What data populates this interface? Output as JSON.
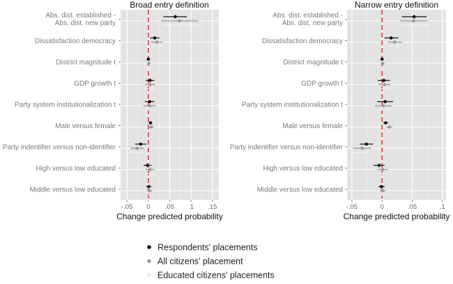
{
  "chart_data": [
    {
      "type": "scatter",
      "subtype": "coefficient-plot",
      "title": "Broad entry definition",
      "xlabel": "Change predicted probability",
      "xlim": [
        -0.065,
        0.165
      ],
      "xticks": [
        -0.05,
        0,
        0.05,
        0.1,
        0.15
      ],
      "xtick_labels": [
        "-.05",
        "0",
        ".05",
        ".1",
        ".15"
      ],
      "grid": true,
      "reference_line": 0,
      "categories": [
        "Abs. dist. established -\nAbs. dist. new party",
        "Dissatisfaction democracy",
        "District magnitude t",
        "GDP growth t",
        "Party system institutionalization t",
        "Male versus female",
        "Party indentifier versus non-identifier",
        "High versus low educated",
        "Middle versus low educated"
      ],
      "series": [
        {
          "name": "Respondents' placements",
          "color": "#111111",
          "estimates": [
            0.063,
            0.015,
            0.0,
            0.004,
            0.003,
            0.005,
            -0.018,
            -0.002,
            0.001
          ],
          "lower": [
            0.035,
            0.004,
            -0.002,
            -0.006,
            -0.008,
            0.001,
            -0.031,
            -0.011,
            -0.005
          ],
          "upper": [
            0.09,
            0.026,
            0.002,
            0.014,
            0.014,
            0.009,
            -0.005,
            0.007,
            0.007
          ]
        },
        {
          "name": "All citizens' placement",
          "color": "#9a9a9a",
          "estimates": [
            0.073,
            0.02,
            0.001,
            0.004,
            0.003,
            0.007,
            -0.026,
            0.004,
            0.003
          ],
          "lower": [
            0.03,
            0.006,
            -0.002,
            -0.008,
            -0.012,
            0.002,
            -0.042,
            -0.006,
            -0.003
          ],
          "upper": [
            0.117,
            0.034,
            0.004,
            0.016,
            0.018,
            0.012,
            -0.01,
            0.014,
            0.009
          ]
        },
        {
          "name": "Educated citizens' placements",
          "color": "#e8e8e8",
          "estimates": [
            0.078,
            0.022,
            0.001,
            0.005,
            0.004,
            0.008,
            -0.028,
            0.005,
            0.004
          ],
          "lower": [
            0.035,
            0.008,
            -0.002,
            -0.007,
            -0.011,
            0.003,
            -0.044,
            -0.005,
            -0.002
          ],
          "upper": [
            0.121,
            0.036,
            0.004,
            0.017,
            0.019,
            0.013,
            -0.012,
            0.015,
            0.01
          ]
        }
      ]
    },
    {
      "type": "scatter",
      "subtype": "coefficient-plot",
      "title": "Narrow entry definition",
      "xlabel": "Change predicted probability",
      "xlim": [
        -0.058,
        0.106
      ],
      "xticks": [
        -0.05,
        0,
        0.05,
        0.1
      ],
      "xtick_labels": [
        "-.05",
        "0",
        ".05",
        ".1"
      ],
      "grid": true,
      "reference_line": 0,
      "categories": [
        "Abs. dist. established -\nAbs. dist. new party",
        "Dissatisfaction democracy",
        "District magnitude t",
        "GDP growth t",
        "Party system institutionalization t",
        "Male versus female",
        "Party indentifier versus non-identifier",
        "High versus low educated",
        "Middle versus low educated"
      ],
      "series": [
        {
          "name": "Respondents' placements",
          "color": "#111111",
          "estimates": [
            0.053,
            0.015,
            0.0,
            0.003,
            0.005,
            0.006,
            -0.026,
            -0.005,
            -0.001
          ],
          "lower": [
            0.033,
            0.004,
            -0.002,
            -0.007,
            -0.008,
            0.002,
            -0.037,
            -0.014,
            -0.006
          ],
          "upper": [
            0.074,
            0.027,
            0.002,
            0.013,
            0.018,
            0.01,
            -0.015,
            0.004,
            0.004
          ]
        },
        {
          "name": "All citizens' placement",
          "color": "#9a9a9a",
          "estimates": [
            0.052,
            0.021,
            0.001,
            0.004,
            0.002,
            0.012,
            -0.033,
            0.001,
            0.001
          ],
          "lower": [
            0.03,
            0.009,
            -0.002,
            -0.006,
            -0.012,
            0.007,
            -0.048,
            -0.008,
            -0.004
          ],
          "upper": [
            0.075,
            0.033,
            0.004,
            0.014,
            0.016,
            0.017,
            -0.018,
            0.01,
            0.006
          ]
        },
        {
          "name": "Educated citizens' placements",
          "color": "#e8e8e8",
          "estimates": [
            0.055,
            0.023,
            0.001,
            0.005,
            0.003,
            0.013,
            -0.035,
            0.002,
            0.002
          ],
          "lower": [
            0.033,
            0.011,
            -0.002,
            -0.005,
            -0.011,
            0.008,
            -0.05,
            -0.007,
            -0.003
          ],
          "upper": [
            0.078,
            0.035,
            0.004,
            0.015,
            0.017,
            0.018,
            -0.02,
            0.011,
            0.007
          ]
        }
      ]
    }
  ],
  "legend": {
    "items": [
      {
        "label": "Respondents' placements",
        "color": "#111111"
      },
      {
        "label": "All citizens' placement",
        "color": "#9a9a9a"
      },
      {
        "label": "Educated citizens' placements",
        "color": "#e8e8e8"
      }
    ]
  },
  "colors": {
    "panel_bg": "#e3e3e3",
    "grid": "#ffffff",
    "reference_line": "#d62728",
    "label_text": "#7a7a7a"
  }
}
